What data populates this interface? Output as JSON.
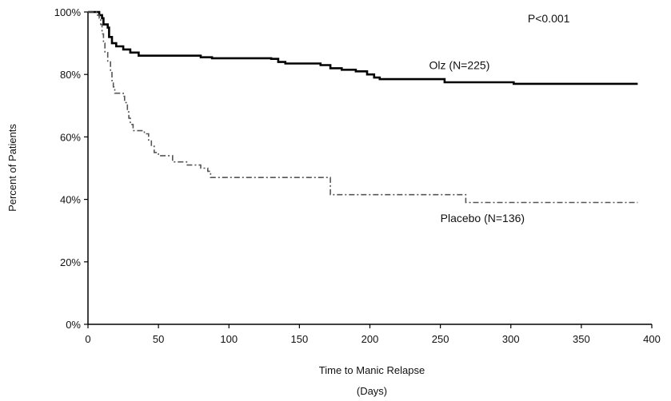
{
  "chart_data": {
    "type": "line",
    "chart_subtype": "kaplan-meier step curves",
    "xlabel": "Time to Manic Relapse",
    "xlabel_unit": "(Days)",
    "ylabel": "Percent of Patients",
    "xlim": [
      0,
      400
    ],
    "ylim": [
      0,
      100
    ],
    "x_ticks": [
      0,
      50,
      100,
      150,
      200,
      250,
      300,
      350,
      400
    ],
    "y_ticks": [
      0,
      20,
      40,
      60,
      80,
      100
    ],
    "y_tick_labels": [
      "0%",
      "20%",
      "40%",
      "60%",
      "80%",
      "100%"
    ],
    "grid": false,
    "annotations": [
      {
        "text": "P<0.001",
        "x": 312,
        "y": 98
      },
      {
        "text": "Olz (N=225)",
        "x": 242,
        "y": 83
      },
      {
        "text": "Placebo (N=136)",
        "x": 250,
        "y": 34
      }
    ],
    "series": [
      {
        "name": "Olz (N=225)",
        "style": "solid",
        "color": "#000000",
        "points": [
          [
            0,
            100
          ],
          [
            6,
            100
          ],
          [
            8,
            99
          ],
          [
            10,
            98
          ],
          [
            11,
            96
          ],
          [
            14,
            95
          ],
          [
            15,
            92
          ],
          [
            17,
            90
          ],
          [
            20,
            89
          ],
          [
            25,
            88
          ],
          [
            30,
            87
          ],
          [
            36,
            86
          ],
          [
            78,
            86
          ],
          [
            80,
            85.5
          ],
          [
            88,
            85.2
          ],
          [
            130,
            85
          ],
          [
            135,
            84
          ],
          [
            140,
            83.5
          ],
          [
            165,
            83
          ],
          [
            172,
            82
          ],
          [
            180,
            81.5
          ],
          [
            190,
            81
          ],
          [
            198,
            80
          ],
          [
            203,
            79
          ],
          [
            207,
            78.5
          ],
          [
            250,
            78.5
          ],
          [
            253,
            77.5
          ],
          [
            300,
            77.5
          ],
          [
            302,
            77
          ],
          [
            390,
            77
          ]
        ]
      },
      {
        "name": "Placebo (N=136)",
        "style": "dashed",
        "color": "#555555",
        "points": [
          [
            0,
            100
          ],
          [
            4,
            100
          ],
          [
            6,
            99
          ],
          [
            8,
            98
          ],
          [
            9,
            96
          ],
          [
            10,
            93
          ],
          [
            11,
            90
          ],
          [
            12,
            87
          ],
          [
            14,
            84
          ],
          [
            16,
            81
          ],
          [
            17,
            78
          ],
          [
            18,
            76
          ],
          [
            19,
            74
          ],
          [
            25,
            73
          ],
          [
            26,
            71
          ],
          [
            28,
            68
          ],
          [
            29,
            66
          ],
          [
            30,
            64
          ],
          [
            32,
            62
          ],
          [
            40,
            61
          ],
          [
            43,
            59
          ],
          [
            45,
            57
          ],
          [
            47,
            55
          ],
          [
            50,
            54
          ],
          [
            60,
            52
          ],
          [
            70,
            51
          ],
          [
            80,
            50
          ],
          [
            85,
            49
          ],
          [
            87,
            47
          ],
          [
            170,
            47
          ],
          [
            172,
            41.5
          ],
          [
            265,
            41.5
          ],
          [
            268,
            39
          ],
          [
            390,
            39
          ]
        ]
      }
    ]
  }
}
